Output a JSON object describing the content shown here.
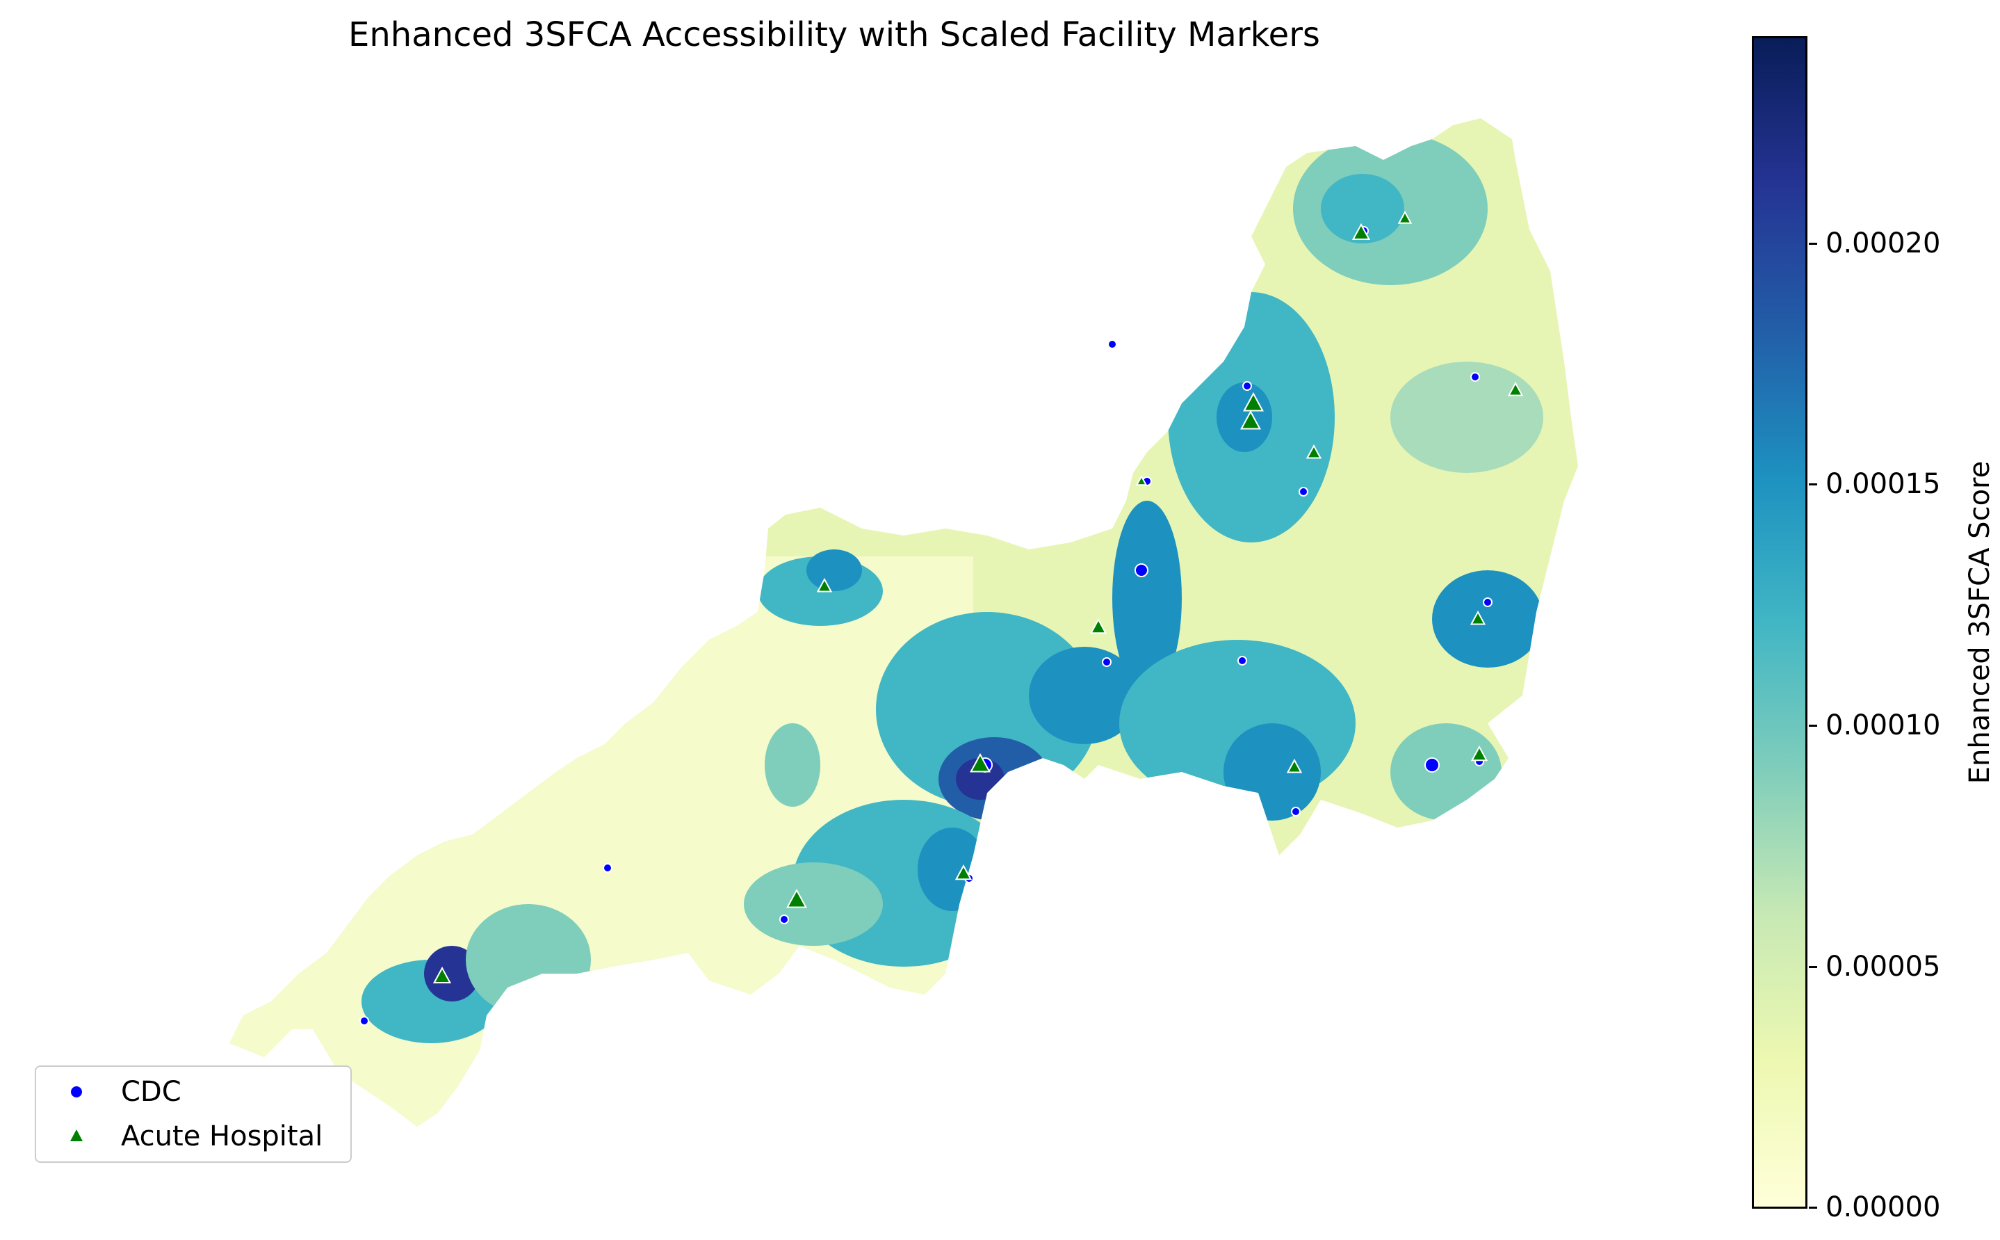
{
  "title": "Enhanced 3SFCA Accessibility with Scaled Facility Markers",
  "colorbar": {
    "label": "Enhanced 3SFCA Score",
    "min": 0,
    "max": 0.000243,
    "ticks": [
      "0.00000",
      "0.00005",
      "0.00010",
      "0.00015",
      "0.00020"
    ],
    "colormap": "YlGnBu",
    "stops": [
      "#ffffd9",
      "#edf8b1",
      "#c7e9b4",
      "#7fcdbb",
      "#41b6c4",
      "#1d91c0",
      "#225ea8",
      "#253494",
      "#081d58"
    ]
  },
  "legend": {
    "items": [
      {
        "label": "CDC",
        "marker": "circle",
        "color": "#0000ff"
      },
      {
        "label": "Acute Hospital",
        "marker": "triangle",
        "color": "#008000"
      }
    ]
  },
  "colors": {
    "cdc": "#0000ff",
    "hospital": "#008000",
    "outline": "#ffffff"
  }
}
